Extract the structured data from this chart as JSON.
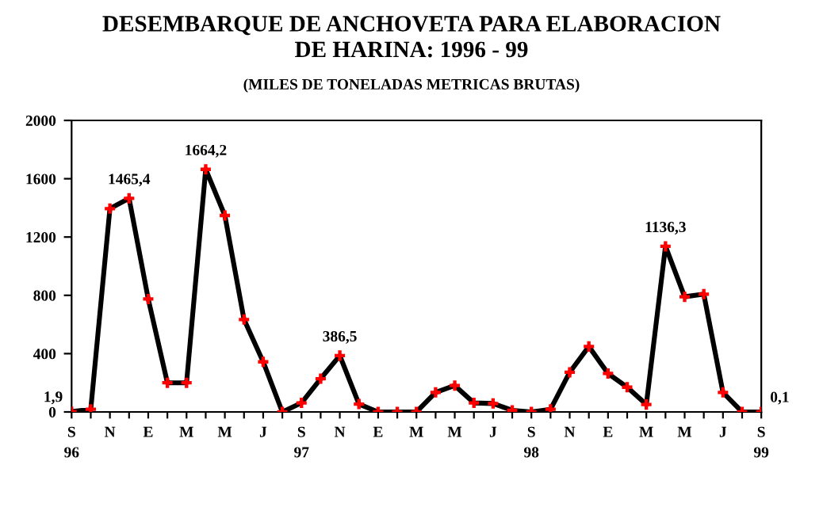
{
  "chart_data": {
    "type": "line",
    "title": "DESEMBARQUE DE ANCHOVETA PARA ELABORACION\nDE HARINA: 1996 - 99",
    "subtitle": "(MILES DE TONELADAS METRICAS BRUTAS)",
    "categories": [
      "S\n96",
      null,
      "N",
      null,
      "E",
      null,
      "M",
      null,
      "M",
      null,
      "J",
      null,
      "S\n97",
      null,
      "N",
      null,
      "E",
      null,
      "M",
      null,
      "M",
      null,
      "J",
      null,
      "S\n98",
      null,
      "N",
      null,
      "E",
      null,
      "M",
      null,
      "M",
      null,
      "J",
      null,
      "S\n99"
    ],
    "series": [
      {
        "color": "#000000",
        "values": [
          1.9,
          18,
          1395,
          1465.4,
          775,
          200,
          200,
          1664.2,
          1348,
          634,
          344,
          0,
          62,
          228,
          386.5,
          54,
          0,
          0,
          0,
          134,
          181,
          62,
          58,
          11,
          0,
          18,
          272,
          449,
          264,
          170,
          51,
          1136.3,
          790,
          808,
          134,
          0,
          0.1
        ],
        "value_labels": [
          "1,9",
          null,
          null,
          "1465,4",
          null,
          null,
          null,
          "1664,2",
          null,
          null,
          null,
          null,
          null,
          null,
          "386,5",
          null,
          null,
          null,
          null,
          null,
          null,
          null,
          null,
          null,
          null,
          null,
          null,
          null,
          null,
          null,
          null,
          "1136,3",
          null,
          null,
          null,
          null,
          "0,1"
        ]
      }
    ],
    "ylim": [
      0,
      2000
    ],
    "yticks": [
      0,
      400,
      800,
      1200,
      1600,
      2000
    ],
    "marker": "cross",
    "grid": false,
    "legend": false
  }
}
